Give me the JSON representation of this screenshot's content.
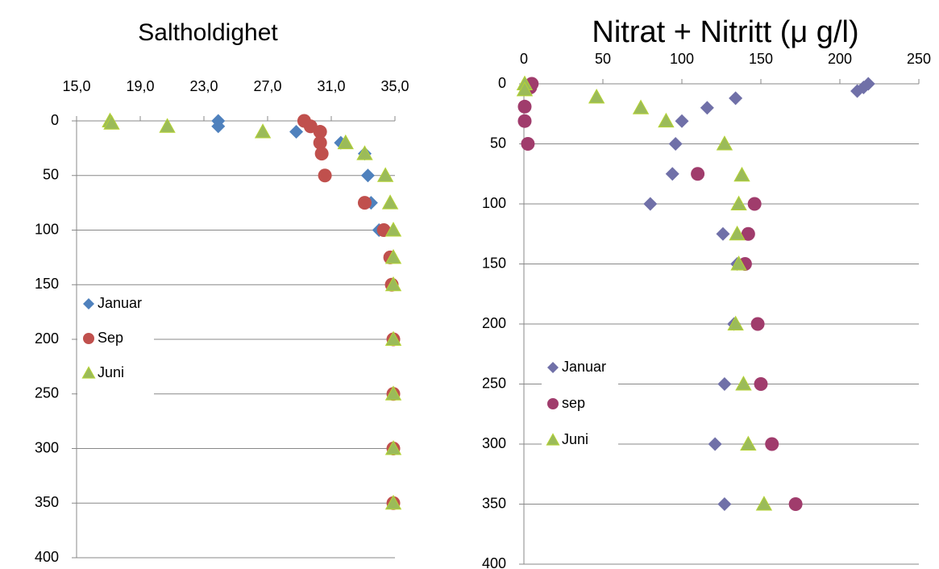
{
  "chart_data": [
    {
      "type": "scatter",
      "title": "Saltholdighet",
      "xlim": [
        15,
        35
      ],
      "xticks": [
        {
          "value": 15,
          "label": "15,0"
        },
        {
          "value": 19,
          "label": "19,0"
        },
        {
          "value": 23,
          "label": "23,0"
        },
        {
          "value": 27,
          "label": "27,0"
        },
        {
          "value": 31,
          "label": "31,0"
        },
        {
          "value": 35,
          "label": "35,0"
        }
      ],
      "ylim": [
        0,
        400
      ],
      "yticks": [
        0,
        50,
        100,
        150,
        200,
        250,
        300,
        350,
        400
      ],
      "y_reversed": true,
      "grid": true,
      "legend": "left",
      "series": [
        {
          "name": "Januar",
          "color": "#4f81bd",
          "marker": "diamond",
          "x": [
            23.9,
            23.9,
            28.8,
            31.6,
            33.1,
            33.3,
            33.5,
            34.0
          ],
          "values": [
            0,
            5,
            10,
            20,
            30,
            50,
            75,
            100
          ]
        },
        {
          "name": "Sep",
          "color": "#c0504d",
          "marker": "circle",
          "x": [
            29.3,
            29.7,
            30.3,
            30.3,
            30.4,
            30.6,
            33.1,
            34.3,
            34.7,
            34.8,
            34.9,
            34.9,
            34.9,
            34.9
          ],
          "values": [
            0,
            5,
            10,
            20,
            30,
            50,
            75,
            100,
            125,
            150,
            200,
            250,
            300,
            350
          ]
        },
        {
          "name": "Juni",
          "color": "#9bbb59",
          "marker": "triangle",
          "x": [
            17.1,
            17.2,
            20.7,
            26.7,
            31.9,
            33.1,
            34.4,
            34.7,
            34.9,
            34.9,
            34.9,
            34.9,
            34.9,
            34.9,
            34.9
          ],
          "values": [
            0,
            2,
            5,
            10,
            20,
            30,
            50,
            75,
            100,
            125,
            150,
            200,
            250,
            300,
            350
          ]
        }
      ]
    },
    {
      "type": "scatter",
      "title": "Nitrat + Nitritt (μ g/l)",
      "xlim": [
        0,
        250
      ],
      "xticks": [
        0,
        50,
        100,
        150,
        200,
        250
      ],
      "ylim": [
        0,
        400
      ],
      "yticks": [
        0,
        50,
        100,
        150,
        200,
        250,
        300,
        350,
        400
      ],
      "y_reversed": true,
      "grid": true,
      "legend": "left",
      "series": [
        {
          "name": "Januar",
          "color": "#7070a8",
          "marker": "diamond",
          "x": [
            218,
            215,
            211,
            134,
            116,
            100,
            96,
            94,
            80,
            126,
            135,
            133,
            127,
            121,
            127
          ],
          "values": [
            0,
            3,
            6,
            12,
            20,
            31,
            50,
            75,
            100,
            125,
            150,
            200,
            250,
            300,
            350
          ]
        },
        {
          "name": "sep",
          "color": "#a03c6c",
          "marker": "circle",
          "x": [
            5,
            4,
            0.5,
            0.5,
            2.5,
            110,
            146,
            142,
            140,
            148,
            150,
            157,
            172
          ],
          "values": [
            0,
            3,
            19,
            31,
            50,
            75,
            100,
            125,
            150,
            200,
            250,
            300,
            350
          ]
        },
        {
          "name": "Juni",
          "color": "#9bbb59",
          "marker": "triangle",
          "x": [
            0.5,
            0.5,
            46,
            74,
            90,
            127,
            138,
            136,
            135,
            136,
            134,
            139,
            142,
            152
          ],
          "values": [
            0,
            5,
            11,
            20,
            31,
            50,
            76,
            100,
            125,
            150,
            200,
            250,
            300,
            350
          ]
        }
      ]
    }
  ]
}
